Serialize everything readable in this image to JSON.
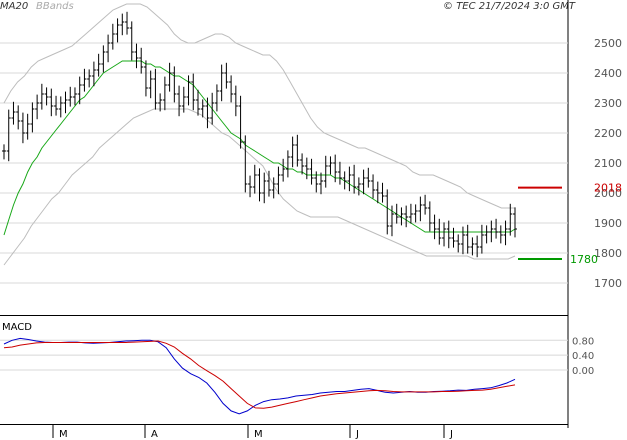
{
  "header": {
    "ma_label": "MA20",
    "bbands_label": "BBands",
    "copyright": "© TEC 21/7/2024 3:0 GMT"
  },
  "colors": {
    "price_bars": "#000000",
    "ma20": "#18a818",
    "bbands": "#bdbdbd",
    "grid": "#d8d8d8",
    "resistance": "#cc0000",
    "support": "#009900",
    "macd": "#0000cc",
    "signal": "#cc0000"
  },
  "chart_data": [
    {
      "type": "candlestick",
      "title": "",
      "ylim": [
        1600,
        2600
      ],
      "yticks": [
        1700,
        1800,
        1900,
        2000,
        2100,
        2200,
        2300,
        2400,
        2500
      ],
      "ytick_labels": [
        "1700",
        "1800",
        "1900",
        "2000",
        "2100",
        "2200",
        "2300",
        "2400",
        "2500"
      ],
      "x_month_labels": [
        "M",
        "A",
        "M",
        "J",
        "J"
      ],
      "levels": [
        {
          "name": "resistance",
          "value": 2018,
          "label": "2018"
        },
        {
          "name": "support",
          "value": 1780,
          "label": "1780"
        }
      ],
      "series": [
        {
          "name": "price_close",
          "values": [
            2140,
            2250,
            2270,
            2240,
            2200,
            2230,
            2280,
            2300,
            2330,
            2320,
            2290,
            2280,
            2300,
            2310,
            2320,
            2330,
            2360,
            2380,
            2390,
            2410,
            2430,
            2470,
            2500,
            2530,
            2560,
            2570,
            2550,
            2470,
            2450,
            2420,
            2350,
            2380,
            2300,
            2310,
            2360,
            2400,
            2330,
            2290,
            2320,
            2370,
            2310,
            2280,
            2290,
            2250,
            2300,
            2340,
            2400,
            2370,
            2330,
            2290,
            2170,
            2030,
            2020,
            2060,
            2000,
            2040,
            2010,
            2030,
            2060,
            2080,
            2120,
            2160,
            2110,
            2090,
            2080,
            2050,
            2030,
            2040,
            2090,
            2100,
            2070,
            2050,
            2040,
            2060,
            2020,
            2030,
            2050,
            2040,
            2010,
            2000,
            1990,
            1890,
            1930,
            1920,
            1930,
            1920,
            1930,
            1940,
            1960,
            1950,
            1900,
            1880,
            1850,
            1880,
            1850,
            1840,
            1830,
            1860,
            1820,
            1830,
            1820,
            1860,
            1870,
            1880,
            1870,
            1860,
            1880,
            1930,
            1880
          ],
          "color": "#000000"
        },
        {
          "name": "MA20",
          "values": [
            1860,
            1910,
            1960,
            2000,
            2030,
            2070,
            2100,
            2120,
            2150,
            2170,
            2190,
            2210,
            2230,
            2250,
            2270,
            2290,
            2310,
            2320,
            2340,
            2360,
            2380,
            2400,
            2410,
            2420,
            2430,
            2440,
            2440,
            2440,
            2440,
            2440,
            2430,
            2430,
            2420,
            2420,
            2410,
            2400,
            2390,
            2390,
            2380,
            2370,
            2360,
            2340,
            2320,
            2300,
            2280,
            2260,
            2240,
            2220,
            2200,
            2190,
            2180,
            2160,
            2150,
            2140,
            2130,
            2120,
            2110,
            2100,
            2100,
            2090,
            2080,
            2080,
            2070,
            2070,
            2060,
            2060,
            2060,
            2060,
            2060,
            2060,
            2050,
            2050,
            2040,
            2030,
            2020,
            2010,
            2000,
            1990,
            1980,
            1970,
            1960,
            1950,
            1940,
            1930,
            1920,
            1910,
            1900,
            1890,
            1880,
            1870,
            1870,
            1870,
            1870,
            1870,
            1870,
            1870,
            1870,
            1870,
            1870,
            1870,
            1870,
            1870,
            1870,
            1870,
            1870,
            1870,
            1870,
            1870,
            1880
          ],
          "color": "#18a818"
        },
        {
          "name": "BBands upper",
          "values": [
            2300,
            2340,
            2370,
            2390,
            2420,
            2440,
            2450,
            2460,
            2470,
            2480,
            2490,
            2510,
            2530,
            2550,
            2570,
            2590,
            2610,
            2620,
            2630,
            2630,
            2630,
            2620,
            2600,
            2580,
            2560,
            2530,
            2510,
            2500,
            2500,
            2510,
            2520,
            2530,
            2530,
            2520,
            2500,
            2490,
            2480,
            2470,
            2460,
            2460,
            2440,
            2410,
            2370,
            2330,
            2290,
            2250,
            2220,
            2200,
            2190,
            2180,
            2170,
            2160,
            2150,
            2150,
            2140,
            2130,
            2120,
            2110,
            2100,
            2090,
            2070,
            2060,
            2060,
            2060,
            2050,
            2040,
            2030,
            2020,
            2000,
            1990,
            1980,
            1970,
            1960,
            1950,
            1950,
            1950
          ],
          "color": "#bdbdbd"
        },
        {
          "name": "BBands lower",
          "values": [
            1760,
            1790,
            1820,
            1850,
            1890,
            1920,
            1950,
            1980,
            2000,
            2030,
            2060,
            2080,
            2100,
            2120,
            2150,
            2170,
            2190,
            2210,
            2230,
            2250,
            2260,
            2270,
            2280,
            2280,
            2280,
            2280,
            2280,
            2280,
            2270,
            2260,
            2240,
            2220,
            2200,
            2190,
            2170,
            2150,
            2130,
            2110,
            2090,
            2050,
            2010,
            1980,
            1960,
            1940,
            1930,
            1920,
            1920,
            1920,
            1920,
            1920,
            1910,
            1900,
            1890,
            1880,
            1870,
            1860,
            1850,
            1840,
            1830,
            1820,
            1810,
            1800,
            1790,
            1790,
            1790,
            1790,
            1790,
            1790,
            1790,
            1780,
            1780,
            1780,
            1780,
            1780,
            1780,
            1790
          ],
          "color": "#bdbdbd"
        }
      ]
    },
    {
      "type": "line",
      "title": "MACD",
      "ylim": [
        -140,
        140
      ],
      "yticks": [
        80,
        40,
        0
      ],
      "ytick_labels": [
        "0.80",
        "0.40",
        "0.00"
      ],
      "series": [
        {
          "name": "MACD",
          "values": [
            70,
            80,
            85,
            82,
            78,
            75,
            74,
            74,
            75,
            75,
            73,
            72,
            73,
            74,
            76,
            78,
            79,
            80,
            80,
            76,
            60,
            30,
            5,
            -10,
            -20,
            -35,
            -60,
            -90,
            -110,
            -118,
            -110,
            -95,
            -85,
            -80,
            -78,
            -75,
            -70,
            -68,
            -66,
            -62,
            -60,
            -58,
            -58,
            -55,
            -52,
            -50,
            -55,
            -60,
            -62,
            -60,
            -58,
            -60,
            -60,
            -58,
            -57,
            -56,
            -54,
            -55,
            -52,
            -50,
            -48,
            -42,
            -35,
            -25
          ],
          "color": "#0000cc"
        },
        {
          "name": "Signal",
          "values": [
            60,
            62,
            67,
            70,
            73,
            74,
            74,
            74,
            74,
            74,
            74,
            74,
            74,
            74,
            74,
            74,
            75,
            76,
            77,
            78,
            72,
            62,
            45,
            30,
            12,
            -2,
            -15,
            -30,
            -50,
            -70,
            -90,
            -102,
            -103,
            -100,
            -95,
            -90,
            -85,
            -80,
            -75,
            -70,
            -67,
            -64,
            -62,
            -60,
            -58,
            -56,
            -55,
            -56,
            -58,
            -59,
            -59,
            -59,
            -59,
            -59,
            -58,
            -58,
            -57,
            -56,
            -55,
            -54,
            -52,
            -48,
            -44,
            -40
          ],
          "color": "#cc0000"
        }
      ]
    }
  ]
}
